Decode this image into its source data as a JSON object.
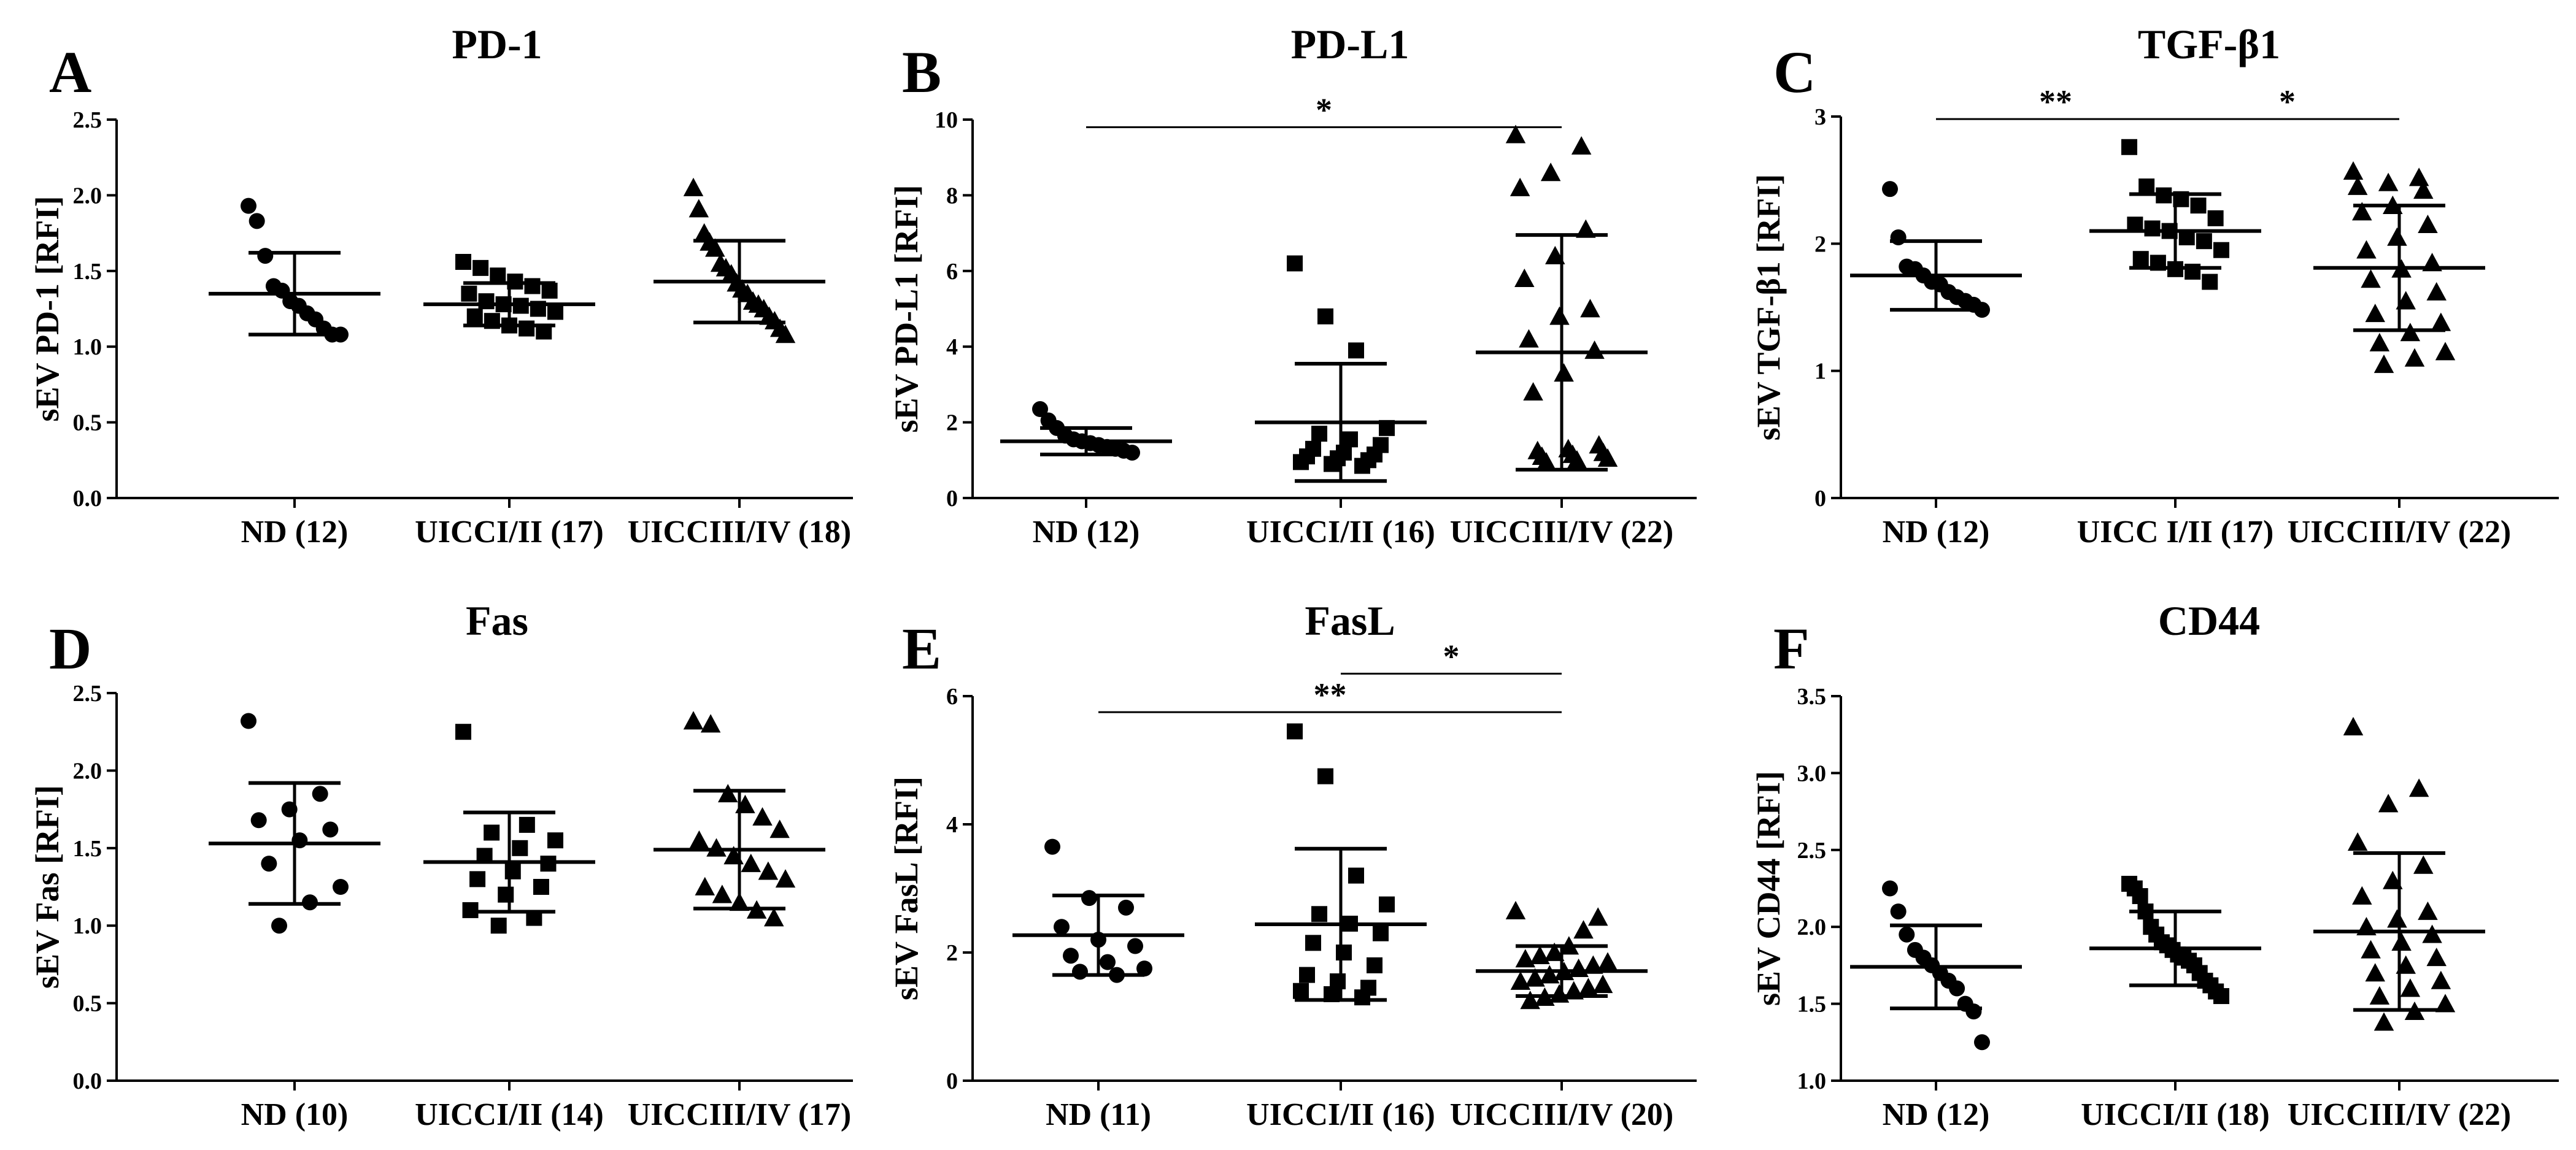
{
  "figure": {
    "description_note": ""
  },
  "chart_data": [
    {
      "letter": "A",
      "title": "PD-1",
      "ylabel": "sEV PD-1 [RFI]",
      "type": "scatter",
      "ylim": [
        0,
        2.5
      ],
      "yticks": [
        "0.0",
        "0.5",
        "1.0",
        "1.5",
        "2.0",
        "2.5"
      ],
      "ytick_values": [
        0,
        0.5,
        1,
        1.5,
        2,
        2.5
      ],
      "categories": [
        "ND (12)",
        "UICCI/II (17)",
        "UICCIII/IV (18)"
      ],
      "markers": [
        "circle",
        "square",
        "triangle"
      ],
      "means": [
        1.35,
        1.28,
        1.43
      ],
      "sds": [
        0.27,
        0.14,
        0.27
      ],
      "points": [
        [
          1.93,
          1.83,
          1.6,
          1.4,
          1.37,
          1.3,
          1.27,
          1.22,
          1.18,
          1.12,
          1.08,
          1.08
        ],
        [
          1.56,
          1.52,
          1.47,
          1.43,
          1.4,
          1.37,
          1.35,
          1.3,
          1.28,
          1.27,
          1.25,
          1.23,
          1.2,
          1.17,
          1.14,
          1.12,
          1.1
        ],
        [
          2.05,
          1.91,
          1.75,
          1.69,
          1.65,
          1.55,
          1.52,
          1.48,
          1.42,
          1.38,
          1.35,
          1.3,
          1.28,
          1.25,
          1.2,
          1.17,
          1.12,
          1.08
        ]
      ],
      "significance": []
    },
    {
      "letter": "B",
      "title": "PD-L1",
      "ylabel": "sEV PD-L1 [RFI]",
      "type": "scatter",
      "ylim": [
        0,
        10
      ],
      "yticks": [
        "0",
        "2",
        "4",
        "6",
        "8",
        "10"
      ],
      "ytick_values": [
        0,
        2,
        4,
        6,
        8,
        10
      ],
      "categories": [
        "ND (12)",
        "UICCI/II (16)",
        "UICCIII/IV (22)"
      ],
      "markers": [
        "circle",
        "square",
        "triangle"
      ],
      "means": [
        1.5,
        2.0,
        3.85
      ],
      "sds": [
        0.35,
        1.55,
        3.1
      ],
      "points": [
        [
          2.35,
          2.05,
          1.85,
          1.65,
          1.55,
          1.5,
          1.45,
          1.4,
          1.35,
          1.3,
          1.25,
          1.2
        ],
        [
          6.2,
          4.8,
          3.9,
          1.85,
          1.7,
          1.55,
          1.4,
          1.3,
          1.2,
          1.15,
          1.1,
          1.05,
          1.0,
          0.95,
          0.9,
          0.85
        ],
        [
          9.6,
          9.3,
          8.6,
          8.2,
          7.1,
          6.4,
          5.8,
          5.0,
          4.8,
          4.2,
          3.9,
          3.3,
          2.8,
          1.4,
          1.3,
          1.25,
          1.2,
          1.15,
          1.1,
          1.05,
          1.0,
          0.95
        ]
      ],
      "significance": [
        {
          "from": 0,
          "to": 2,
          "label": "*",
          "level": 9.8
        }
      ]
    },
    {
      "letter": "C",
      "title": "TGF-β1",
      "ylabel": "sEV TGF-β1 [RFI]",
      "type": "scatter",
      "ylim": [
        0,
        3
      ],
      "yticks": [
        "0",
        "1",
        "2",
        "3"
      ],
      "ytick_values": [
        0,
        1,
        2,
        3
      ],
      "categories": [
        "ND (12)",
        "UICC I/II (17)",
        "UICCIII/IV (22)"
      ],
      "markers": [
        "circle",
        "square",
        "triangle"
      ],
      "means": [
        1.75,
        2.1,
        1.81
      ],
      "sds": [
        0.27,
        0.29,
        0.49
      ],
      "points": [
        [
          2.43,
          2.05,
          1.82,
          1.8,
          1.75,
          1.7,
          1.68,
          1.62,
          1.58,
          1.55,
          1.52,
          1.48
        ],
        [
          2.76,
          2.45,
          2.38,
          2.35,
          2.3,
          2.2,
          2.15,
          2.12,
          2.1,
          2.05,
          2.02,
          1.95,
          1.88,
          1.85,
          1.8,
          1.78,
          1.7
        ],
        [
          2.57,
          2.52,
          2.48,
          2.45,
          2.42,
          2.3,
          2.25,
          2.15,
          2.05,
          1.95,
          1.85,
          1.8,
          1.72,
          1.62,
          1.55,
          1.45,
          1.38,
          1.3,
          1.22,
          1.15,
          1.1,
          1.05
        ]
      ],
      "significance": [
        {
          "from": 0,
          "to": 1,
          "label": "**",
          "level": 2.98
        },
        {
          "from": 1,
          "to": 2,
          "label": "*",
          "level": 2.98
        }
      ]
    },
    {
      "letter": "D",
      "title": "Fas",
      "ylabel": "sEV Fas [RFI]",
      "type": "scatter",
      "ylim": [
        0,
        2.5
      ],
      "yticks": [
        "0.0",
        "0.5",
        "1.0",
        "1.5",
        "2.0",
        "2.5"
      ],
      "ytick_values": [
        0,
        0.5,
        1,
        1.5,
        2,
        2.5
      ],
      "categories": [
        "ND (10)",
        "UICCI/II (14)",
        "UICCIII/IV (17)"
      ],
      "markers": [
        "circle",
        "square",
        "triangle"
      ],
      "means": [
        1.53,
        1.41,
        1.49
      ],
      "sds": [
        0.39,
        0.32,
        0.38
      ],
      "points": [
        [
          2.32,
          1.85,
          1.75,
          1.68,
          1.62,
          1.55,
          1.4,
          1.25,
          1.15,
          1.0
        ],
        [
          2.25,
          1.65,
          1.6,
          1.55,
          1.5,
          1.45,
          1.4,
          1.35,
          1.3,
          1.25,
          1.2,
          1.1,
          1.05,
          1.0
        ],
        [
          2.32,
          2.3,
          1.85,
          1.78,
          1.7,
          1.62,
          1.55,
          1.5,
          1.45,
          1.4,
          1.35,
          1.3,
          1.25,
          1.2,
          1.15,
          1.1,
          1.05
        ]
      ],
      "significance": []
    },
    {
      "letter": "E",
      "title": "FasL",
      "ylabel": "sEV FasL [RFI]",
      "type": "scatter",
      "ylim": [
        0,
        6
      ],
      "yticks": [
        "0",
        "2",
        "4",
        "6"
      ],
      "ytick_values": [
        0,
        2,
        4,
        6
      ],
      "categories": [
        "ND (11)",
        "UICCI/II (16)",
        "UICCIII/IV (20)"
      ],
      "markers": [
        "circle",
        "square",
        "triangle"
      ],
      "means": [
        2.27,
        2.44,
        1.71
      ],
      "sds": [
        0.62,
        1.18,
        0.39
      ],
      "points": [
        [
          3.65,
          2.85,
          2.7,
          2.4,
          2.2,
          2.1,
          1.95,
          1.85,
          1.75,
          1.7,
          1.65
        ],
        [
          5.45,
          4.75,
          3.2,
          2.75,
          2.6,
          2.45,
          2.3,
          2.15,
          2.0,
          1.8,
          1.65,
          1.55,
          1.45,
          1.4,
          1.35,
          1.3
        ],
        [
          2.65,
          2.55,
          2.35,
          2.1,
          2.0,
          1.95,
          1.9,
          1.85,
          1.8,
          1.75,
          1.7,
          1.65,
          1.6,
          1.55,
          1.5,
          1.45,
          1.4,
          1.35,
          1.3,
          1.25
        ]
      ],
      "significance": [
        {
          "from": 1,
          "to": 2,
          "label": "*",
          "level": 6.35
        },
        {
          "from": 0,
          "to": 2,
          "label": "**",
          "level": 5.75
        }
      ]
    },
    {
      "letter": "F",
      "title": "CD44",
      "ylabel": "sEV CD44 [RFI]",
      "type": "scatter",
      "ylim": [
        1.0,
        3.5
      ],
      "yticks": [
        "1.0",
        "1.5",
        "2.0",
        "2.5",
        "3.0",
        "3.5"
      ],
      "ytick_values": [
        1,
        1.5,
        2,
        2.5,
        3,
        3.5
      ],
      "categories": [
        "ND (12)",
        "UICCI/II (18)",
        "UICCIII/IV (22)"
      ],
      "markers": [
        "circle",
        "square",
        "triangle"
      ],
      "means": [
        1.74,
        1.86,
        1.97
      ],
      "sds": [
        0.27,
        0.24,
        0.51
      ],
      "points": [
        [
          2.25,
          2.1,
          1.95,
          1.85,
          1.8,
          1.75,
          1.7,
          1.65,
          1.6,
          1.5,
          1.45,
          1.25
        ],
        [
          2.28,
          2.25,
          2.2,
          2.1,
          2.0,
          1.95,
          1.9,
          1.88,
          1.85,
          1.82,
          1.8,
          1.78,
          1.75,
          1.7,
          1.65,
          1.62,
          1.58,
          1.55
        ],
        [
          3.3,
          2.9,
          2.8,
          2.55,
          2.4,
          2.3,
          2.2,
          2.1,
          2.05,
          2.0,
          1.95,
          1.9,
          1.85,
          1.8,
          1.75,
          1.7,
          1.65,
          1.6,
          1.55,
          1.5,
          1.45,
          1.38
        ]
      ],
      "significance": []
    }
  ]
}
